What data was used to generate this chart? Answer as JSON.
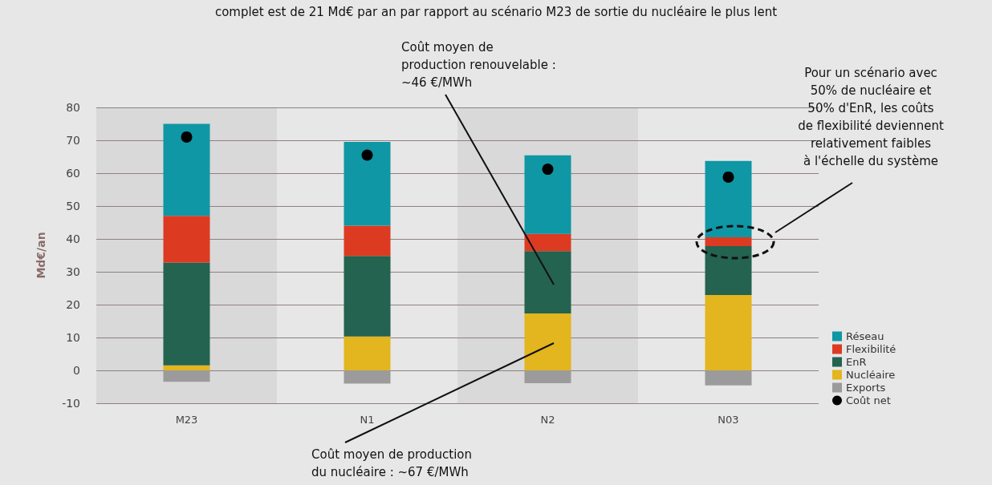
{
  "chart_data": {
    "type": "bar",
    "stacked": true,
    "ylabel": "Md€/an",
    "categories": [
      "M23",
      "N1",
      "N2",
      "N03"
    ],
    "series": [
      {
        "name": "Exports",
        "color": "#9b9b9b",
        "values": [
          -3.5,
          -4,
          -3.9,
          -4.6
        ]
      },
      {
        "name": "Nucléaire",
        "color": "#e3b51e",
        "values": [
          1.5,
          10.3,
          17.3,
          22.9
        ]
      },
      {
        "name": "EnR",
        "color": "#23634f",
        "values": [
          31.3,
          24.5,
          19,
          14.9
        ]
      },
      {
        "name": "Flexibilité",
        "color": "#dc3b22",
        "values": [
          14.2,
          9.2,
          5.2,
          2.7
        ]
      },
      {
        "name": "Réseau",
        "color": "#0f97a5",
        "values": [
          28,
          25.5,
          23.9,
          23.2
        ]
      },
      {
        "name": "Coût net",
        "type": "scatter",
        "color": "#000000",
        "marker": "circle",
        "x": [
          "M23",
          "N1",
          "N2",
          "N03"
        ],
        "values": [
          71,
          65.5,
          61.2,
          58.8
        ]
      }
    ],
    "ylim": [
      -10,
      80
    ],
    "yticks": [
      -10,
      0,
      10,
      20,
      30,
      40,
      50,
      60,
      70,
      80
    ],
    "grid": "y",
    "legend": "bottom right",
    "annotations": [
      "complet est de 21 Md€ par an par rapport au scénario M23 de sortie du nucléaire le plus lent",
      "Coût moyen de\nproduction renouvelable :\n~46 €/MWh",
      "Coût moyen de production\ndu nucléaire : ~67 €/MWh",
      "Pour un scénario avec\n50% de nucléaire et\n50% d'EnR, les coûts\nde flexibilité deviennent\nrelativement faibles\nà l'échelle du système"
    ]
  }
}
